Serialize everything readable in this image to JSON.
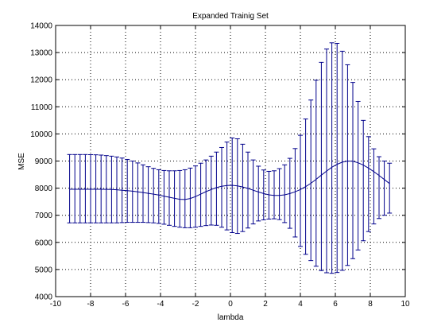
{
  "chart_data": {
    "type": "line",
    "title": "Expanded Trainig Set",
    "xlabel": "lambda",
    "ylabel": "MSE",
    "xlim": [
      -10,
      10
    ],
    "ylim": [
      4000,
      14000
    ],
    "xticks": [
      -10,
      -8,
      -6,
      -4,
      -2,
      0,
      2,
      4,
      6,
      8,
      10
    ],
    "yticks": [
      4000,
      5000,
      6000,
      7000,
      8000,
      9000,
      10000,
      11000,
      12000,
      13000,
      14000
    ],
    "grid": true,
    "grid_style": "dotted",
    "series_color": "#00008b",
    "x": [
      -9.2,
      -8.9,
      -8.6,
      -8.3,
      -8.0,
      -7.7,
      -7.4,
      -7.1,
      -6.8,
      -6.5,
      -6.2,
      -5.9,
      -5.6,
      -5.3,
      -5.0,
      -4.7,
      -4.4,
      -4.1,
      -3.8,
      -3.5,
      -3.2,
      -2.9,
      -2.6,
      -2.3,
      -2.0,
      -1.7,
      -1.4,
      -1.1,
      -0.8,
      -0.5,
      -0.2,
      0.1,
      0.4,
      0.7,
      1.0,
      1.3,
      1.6,
      1.9,
      2.2,
      2.5,
      2.8,
      3.1,
      3.4,
      3.7,
      4.0,
      4.3,
      4.6,
      4.9,
      5.2,
      5.5,
      5.8,
      6.1,
      6.4,
      6.7,
      7.0,
      7.3,
      7.6,
      7.9,
      8.2,
      8.5,
      8.8,
      9.1
    ],
    "series": [
      {
        "mean": [
          7960,
          7960,
          7960,
          7960,
          7960,
          7960,
          7960,
          7955,
          7950,
          7940,
          7925,
          7910,
          7890,
          7865,
          7840,
          7810,
          7780,
          7745,
          7705,
          7665,
          7625,
          7590,
          7580,
          7620,
          7690,
          7780,
          7870,
          7950,
          8020,
          8070,
          8100,
          8105,
          8085,
          8045,
          7990,
          7925,
          7860,
          7800,
          7755,
          7730,
          7730,
          7755,
          7800,
          7865,
          7950,
          8055,
          8180,
          8325,
          8480,
          8630,
          8770,
          8880,
          8960,
          9000,
          8990,
          8935,
          8850,
          8740,
          8610,
          8470,
          8320,
          8170
        ],
        "upper": [
          9240,
          9240,
          9240,
          9240,
          9235,
          9230,
          9220,
          9200,
          9180,
          9150,
          9110,
          9060,
          9000,
          8930,
          8860,
          8790,
          8730,
          8680,
          8650,
          8640,
          8640,
          8650,
          8680,
          8740,
          8820,
          8920,
          9040,
          9180,
          9330,
          9500,
          9700,
          9850,
          9820,
          9620,
          9330,
          9040,
          8810,
          8670,
          8620,
          8640,
          8720,
          8860,
          9100,
          9460,
          9950,
          10550,
          11250,
          11980,
          12640,
          13130,
          13360,
          13340,
          13050,
          12550,
          11900,
          11200,
          10500,
          9900,
          9450,
          9160,
          9000,
          8920
        ],
        "lower": [
          6720,
          6720,
          6720,
          6720,
          6720,
          6720,
          6720,
          6720,
          6720,
          6720,
          6730,
          6740,
          6740,
          6740,
          6740,
          6730,
          6720,
          6700,
          6670,
          6630,
          6590,
          6560,
          6540,
          6540,
          6560,
          6590,
          6620,
          6640,
          6630,
          6560,
          6460,
          6360,
          6330,
          6400,
          6530,
          6680,
          6790,
          6830,
          6860,
          6870,
          6840,
          6730,
          6520,
          6200,
          5850,
          5560,
          5330,
          5120,
          4960,
          4880,
          4860,
          4890,
          4970,
          5150,
          5400,
          5720,
          6060,
          6400,
          6680,
          6880,
          7000,
          7080
        ]
      }
    ]
  }
}
